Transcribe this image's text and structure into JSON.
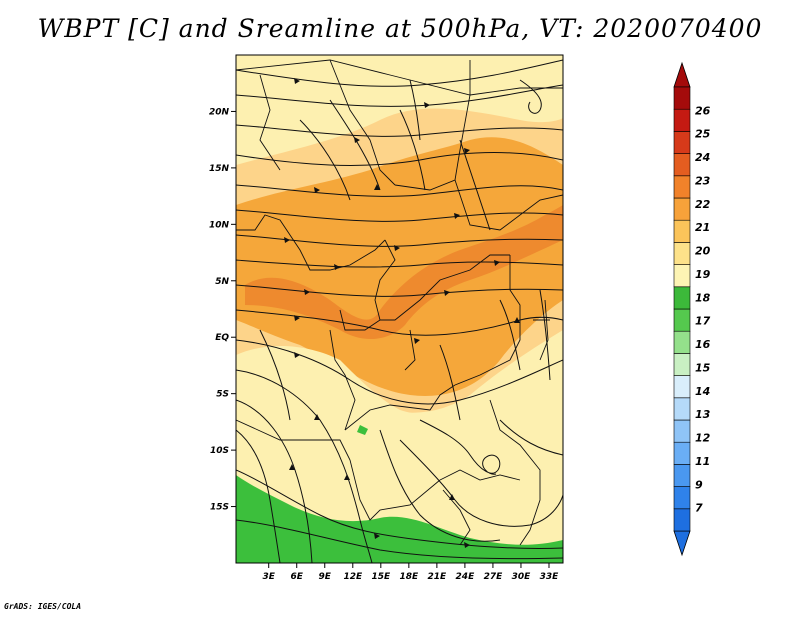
{
  "title": "WBPT [C] and Sreamline at 500hPa, VT: 2020070400",
  "credit": "GrADS: IGES/COLA",
  "map": {
    "lat_labels": [
      "20N",
      "15N",
      "10N",
      "5N",
      "EQ",
      "5S",
      "10S",
      "15S"
    ],
    "lon_labels": [
      "3E",
      "6E",
      "9E",
      "12E",
      "15E",
      "18E",
      "21E",
      "24E",
      "27E",
      "30E",
      "33E"
    ],
    "lat_range": [
      -20,
      25
    ],
    "lon_range": [
      -0.5,
      34.5
    ]
  },
  "colorbar": {
    "labels": [
      "7",
      "9",
      "11",
      "12",
      "13",
      "14",
      "15",
      "16",
      "17",
      "18",
      "19",
      "20",
      "21",
      "22",
      "23",
      "24",
      "25",
      "26"
    ],
    "colors": [
      "#1e6fe0",
      "#2f82ea",
      "#4a98f0",
      "#6aaef5",
      "#8fc4f7",
      "#b5daf9",
      "#d9eefb",
      "#c9f0c3",
      "#94e08b",
      "#55c94e",
      "#3cb93a",
      "#fdf4b4",
      "#fde28a",
      "#fbc45a",
      "#f7a23a",
      "#f1822a",
      "#e45d20",
      "#d63a1a",
      "#c41a12",
      "#a40b0b"
    ],
    "arrow_colors": {
      "low": "#1e6fe0",
      "high": "#a40b0b"
    }
  },
  "field_colors": {
    "green": "#3cbf3c",
    "yellow": "#fdf0b0",
    "light_orange": "#fdd48a",
    "orange": "#f5a73a",
    "dark_orange": "#ee8a2e"
  }
}
